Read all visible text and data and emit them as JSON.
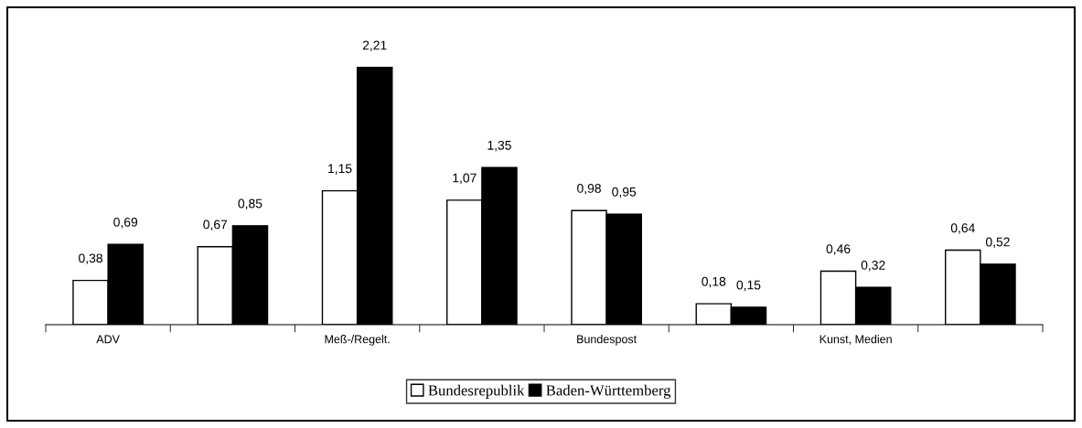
{
  "chart_data": {
    "type": "bar",
    "categories": [
      "ADV",
      null,
      "Meß-/Regelt.",
      null,
      "Bundespost",
      null,
      "Kunst, Medien",
      null
    ],
    "series": [
      {
        "name": "Bundesrepublik",
        "color": "#ffffff",
        "values": [
          0.38,
          0.67,
          1.15,
          1.07,
          0.98,
          0.18,
          0.46,
          0.64
        ],
        "value_labels": [
          "0,38",
          "0,67",
          "1,15",
          "1,07",
          "0,98",
          "0,18",
          "0,46",
          "0,64"
        ]
      },
      {
        "name": "Baden-Württemberg",
        "color": "#000000",
        "values": [
          0.69,
          0.85,
          2.21,
          1.35,
          0.95,
          0.15,
          0.32,
          0.52
        ],
        "value_labels": [
          "0,69",
          "0,85",
          "2,21",
          "1,35",
          "0,95",
          "0,15",
          "0,32",
          "0,52"
        ]
      }
    ],
    "legend": "bottom",
    "grid": false
  }
}
